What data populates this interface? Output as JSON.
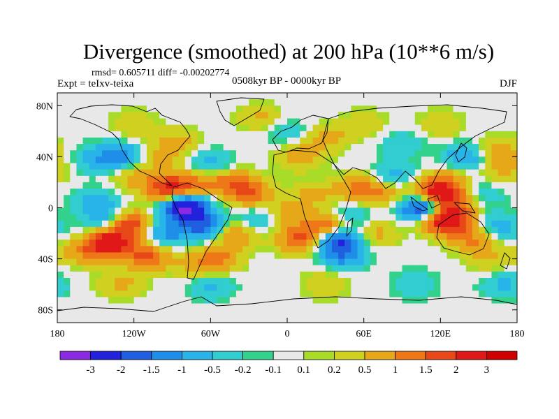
{
  "chart_data": {
    "type": "heatmap",
    "title": "Divergence (smoothed) at 200 hPa (10**6 m/s)",
    "stats_line": "rmsd= 0.605711 diff= -0.00202774",
    "experiment": "Expt = teIxv-teixa",
    "period": "0508kyr BP - 0000kyr BP",
    "season": "DJF",
    "x_range": [
      -180,
      180
    ],
    "y_range": [
      -90,
      90
    ],
    "x_ticks": [
      {
        "value": -180,
        "label": "180"
      },
      {
        "value": -120,
        "label": "120W"
      },
      {
        "value": -60,
        "label": "60W"
      },
      {
        "value": 0,
        "label": "0"
      },
      {
        "value": 60,
        "label": "60E"
      },
      {
        "value": 120,
        "label": "120E"
      },
      {
        "value": 180,
        "label": "180"
      }
    ],
    "y_ticks": [
      {
        "value": 80,
        "label": "80N"
      },
      {
        "value": 40,
        "label": "40N"
      },
      {
        "value": 0,
        "label": "0"
      },
      {
        "value": -40,
        "label": "40S"
      },
      {
        "value": -80,
        "label": "80S"
      }
    ],
    "colorbar": {
      "levels": [
        "-3",
        "-2",
        "-1.5",
        "-1",
        "-0.5",
        "-0.2",
        "-0.1",
        "0.1",
        "0.2",
        "0.5",
        "1",
        "1.5",
        "2",
        "3"
      ],
      "colors": [
        "#8a2be2",
        "#2222dd",
        "#1f5fe0",
        "#1e8ee8",
        "#28b4e8",
        "#32cdd0",
        "#32d28c",
        "#e8e8e8",
        "#a8dc28",
        "#d0d020",
        "#e6a818",
        "#ee7818",
        "#e84818",
        "#e01818",
        "#d00000"
      ]
    },
    "features": [
      {
        "lon": -80,
        "lat": 0,
        "value": -3.2
      },
      {
        "lon": -65,
        "lat": -15,
        "value": -1.6
      },
      {
        "lon": -95,
        "lat": -20,
        "value": -1.1
      },
      {
        "lon": -140,
        "lat": -10,
        "value": -1.2
      },
      {
        "lon": -150,
        "lat": 5,
        "value": -0.7
      },
      {
        "lon": -125,
        "lat": -13,
        "value": 2.2
      },
      {
        "lon": -140,
        "lat": -28,
        "value": 2.6
      },
      {
        "lon": -160,
        "lat": -35,
        "value": 0.8
      },
      {
        "lon": -110,
        "lat": -38,
        "value": 1.6
      },
      {
        "lon": -95,
        "lat": 15,
        "value": 1.9
      },
      {
        "lon": -75,
        "lat": 18,
        "value": 1.2
      },
      {
        "lon": -120,
        "lat": 25,
        "value": 0.7
      },
      {
        "lon": -130,
        "lat": 40,
        "value": -1.2
      },
      {
        "lon": -150,
        "lat": 38,
        "value": -0.7
      },
      {
        "lon": -100,
        "lat": 40,
        "value": 0.6
      },
      {
        "lon": -85,
        "lat": 52,
        "value": 0.6
      },
      {
        "lon": -60,
        "lat": 35,
        "value": -0.7
      },
      {
        "lon": -30,
        "lat": 12,
        "value": 1.4
      },
      {
        "lon": -45,
        "lat": 20,
        "value": 1.1
      },
      {
        "lon": -25,
        "lat": -10,
        "value": -0.7
      },
      {
        "lon": -40,
        "lat": -20,
        "value": 1.1
      },
      {
        "lon": -55,
        "lat": -40,
        "value": 1.2
      },
      {
        "lon": -75,
        "lat": -45,
        "value": 0.5
      },
      {
        "lon": 0,
        "lat": -5,
        "value": 0.7
      },
      {
        "lon": 10,
        "lat": -25,
        "value": 1.6
      },
      {
        "lon": 30,
        "lat": -15,
        "value": 1.7
      },
      {
        "lon": 20,
        "lat": 10,
        "value": 0.6
      },
      {
        "lon": 38,
        "lat": -25,
        "value": -2.2
      },
      {
        "lon": 45,
        "lat": -38,
        "value": -1.1
      },
      {
        "lon": 50,
        "lat": -5,
        "value": -0.6
      },
      {
        "lon": 55,
        "lat": 15,
        "value": 1.1
      },
      {
        "lon": 75,
        "lat": 10,
        "value": 0.8
      },
      {
        "lon": 70,
        "lat": -20,
        "value": 0.6
      },
      {
        "lon": 85,
        "lat": 25,
        "value": -0.7
      },
      {
        "lon": 100,
        "lat": 8,
        "value": 0.6
      },
      {
        "lon": 105,
        "lat": 2,
        "value": -3.0
      },
      {
        "lon": 115,
        "lat": 10,
        "value": 2.3
      },
      {
        "lon": 125,
        "lat": -10,
        "value": 3.0
      },
      {
        "lon": 135,
        "lat": 5,
        "value": 1.2
      },
      {
        "lon": 125,
        "lat": 20,
        "value": 1.0
      },
      {
        "lon": 145,
        "lat": -25,
        "value": 1.1
      },
      {
        "lon": 150,
        "lat": 10,
        "value": -0.7
      },
      {
        "lon": 165,
        "lat": -15,
        "value": -0.8
      },
      {
        "lon": 160,
        "lat": -40,
        "value": 0.5
      },
      {
        "lon": 140,
        "lat": 40,
        "value": -1.0
      },
      {
        "lon": 165,
        "lat": 45,
        "value": 0.8
      },
      {
        "lon": 170,
        "lat": 30,
        "value": 0.6
      },
      {
        "lon": 10,
        "lat": 40,
        "value": 0.8
      },
      {
        "lon": 30,
        "lat": 55,
        "value": 0.7
      },
      {
        "lon": 0,
        "lat": 60,
        "value": -0.5
      },
      {
        "lon": 60,
        "lat": 65,
        "value": 0.5
      },
      {
        "lon": 90,
        "lat": 50,
        "value": -0.5
      },
      {
        "lon": 120,
        "lat": 65,
        "value": 0.5
      },
      {
        "lon": -20,
        "lat": 70,
        "value": 0.6
      },
      {
        "lon": -120,
        "lat": 65,
        "value": 0.5
      },
      {
        "lon": -60,
        "lat": -62,
        "value": -0.6
      },
      {
        "lon": 30,
        "lat": -60,
        "value": 0.5
      },
      {
        "lon": 100,
        "lat": -60,
        "value": -0.5
      },
      {
        "lon": -130,
        "lat": -60,
        "value": 0.6
      },
      {
        "lon": 170,
        "lat": -60,
        "value": -0.6
      }
    ]
  }
}
